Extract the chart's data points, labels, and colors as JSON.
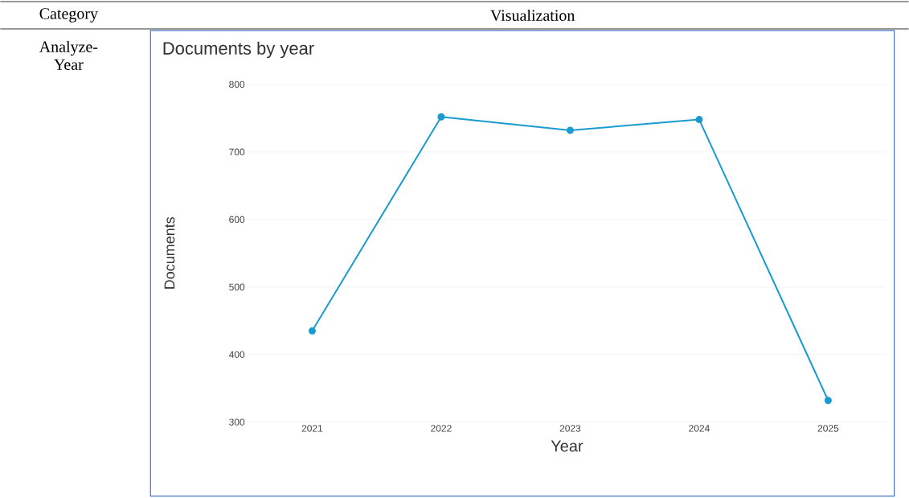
{
  "chart_data": {
    "type": "line",
    "title": "Documents by year",
    "xlabel": "Year",
    "ylabel": "Documents",
    "categories": [
      "2021",
      "2022",
      "2023",
      "2024",
      "2025"
    ],
    "series": [
      {
        "color": "#1a9bcf",
        "values": [
          435,
          752,
          732,
          748,
          332
        ]
      }
    ],
    "ylim": [
      300,
      800
    ],
    "yticks": [
      300,
      400,
      500,
      600,
      700,
      800
    ],
    "grid": "y",
    "marker": "circle",
    "line_style": "solid",
    "annotations": [
      "Category",
      "Visualization",
      "Analyze-Year"
    ]
  }
}
